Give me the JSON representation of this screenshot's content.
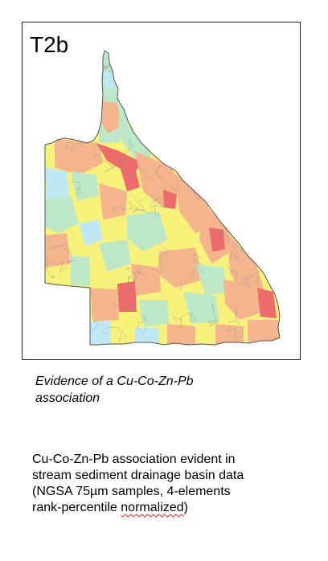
{
  "map": {
    "panel_label": "T2b",
    "colors": {
      "lowest": "#bfe8f5",
      "low": "#bde8c8",
      "mid": "#f7f27a",
      "high": "#f5b58c",
      "highest": "#ee6b6b",
      "boundary": "#8a8a8a"
    }
  },
  "caption": {
    "line1": "Evidence of a Cu-Co-Zn-Pb",
    "line2": "association"
  },
  "description": {
    "line1": "Cu-Co-Zn-Pb association evident in",
    "line2": "stream sediment drainage basin data",
    "line3": "(NGSA 75µm samples, 4-elements",
    "line4_pre": "rank-percentile ",
    "line4_word": "normalized",
    "line4_post": ")"
  }
}
